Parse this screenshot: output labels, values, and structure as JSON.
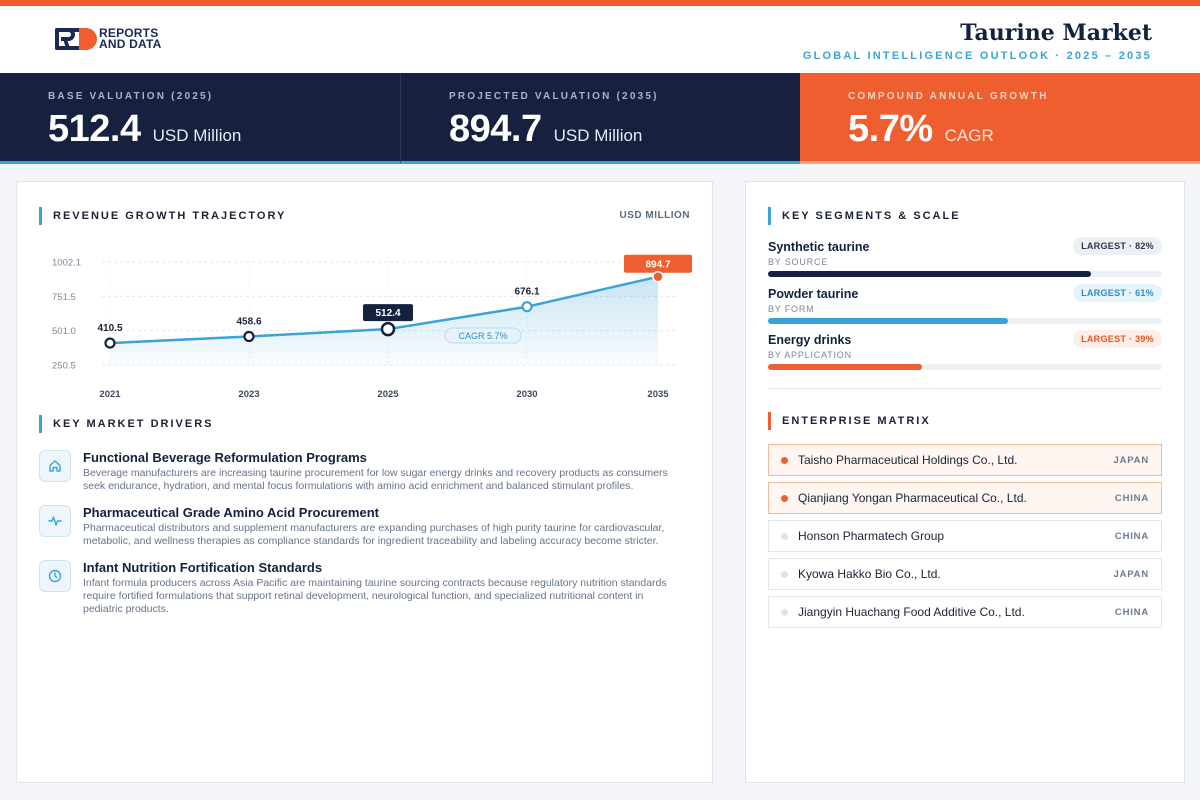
{
  "brand": {
    "line1": "REPORTS",
    "line2": "AND DATA"
  },
  "header": {
    "title": "Taurine Market",
    "subtitle": "GLOBAL INTELLIGENCE OUTLOOK  ·  2025 – 2035"
  },
  "kpis": [
    {
      "label": "BASE VALUATION (2025)",
      "value": "512.4",
      "unit": "USD Million"
    },
    {
      "label": "PROJECTED VALUATION (2035)",
      "value": "894.7",
      "unit": "USD Million"
    },
    {
      "label": "COMPOUND ANNUAL GROWTH",
      "value": "5.7%",
      "unit": "CAGR"
    }
  ],
  "revenue": {
    "title": "REVENUE GROWTH TRAJECTORY",
    "unit": "USD MILLION",
    "cagr_label": "CAGR 5.7%"
  },
  "chart_data": {
    "type": "area",
    "x": [
      "2021",
      "2023",
      "2025",
      "2030",
      "2035"
    ],
    "values": [
      410.5,
      458.6,
      512.4,
      676.1,
      894.7
    ],
    "labels": [
      "410.5",
      "458.6",
      "512.4",
      "676.1",
      "894.7"
    ],
    "yticks": [
      "1002.1",
      "751.5",
      "501.0",
      "250.5"
    ],
    "ylim": [
      250.5,
      1002.1
    ],
    "grid": true,
    "accent": "#3aa3d6",
    "highlight": "#ee5e2e"
  },
  "drivers": {
    "title": "KEY MARKET DRIVERS",
    "items": [
      {
        "icon": "home-icon",
        "title": "Functional Beverage Reformulation Programs",
        "desc": "Beverage manufacturers are increasing taurine procurement for low sugar energy drinks and recovery products as consumers seek endurance, hydration, and mental focus formulations with amino acid enrichment and balanced stimulant profiles."
      },
      {
        "icon": "pulse-icon",
        "title": "Pharmaceutical Grade Amino Acid Procurement",
        "desc": "Pharmaceutical distributors and supplement manufacturers are expanding purchases of high purity taurine for cardiovascular, metabolic, and wellness therapies as compliance standards for ingredient traceability and labeling accuracy become stricter."
      },
      {
        "icon": "clock-icon",
        "title": "Infant Nutrition Fortification Standards",
        "desc": "Infant formula producers across Asia Pacific are maintaining taurine sourcing contracts because regulatory nutrition standards require fortified formulations that support retinal development, neurological function, and specialized nutritional content in pediatric products."
      }
    ]
  },
  "segments": {
    "title": "KEY SEGMENTS & SCALE",
    "items": [
      {
        "name": "Synthetic taurine",
        "sub": "BY SOURCE",
        "badge": "LARGEST · 82%",
        "share": 0.82,
        "color": "#15213f",
        "badge_bg": "#eceff4",
        "badge_fg": "#2a3550"
      },
      {
        "name": "Powder taurine",
        "sub": "BY FORM",
        "badge": "LARGEST · 61%",
        "share": 0.61,
        "color": "#3aa3d6",
        "badge_bg": "#e6f3fa",
        "badge_fg": "#2b8fc2"
      },
      {
        "name": "Energy drinks",
        "sub": "BY APPLICATION",
        "badge": "LARGEST · 39%",
        "share": 0.39,
        "color": "#ee5e2e",
        "badge_bg": "#fdeee7",
        "badge_fg": "#e0562a"
      }
    ]
  },
  "enterprise": {
    "title": "ENTERPRISE MATRIX",
    "items": [
      {
        "name": "Taisho Pharmaceutical Holdings Co., Ltd.",
        "country": "JAPAN",
        "highlight": true
      },
      {
        "name": "Qianjiang Yongan Pharmaceutical Co., Ltd.",
        "country": "CHINA",
        "highlight": true
      },
      {
        "name": "Honson Pharmatech Group",
        "country": "CHINA",
        "highlight": false
      },
      {
        "name": "Kyowa Hakko Bio Co., Ltd.",
        "country": "JAPAN",
        "highlight": false
      },
      {
        "name": "Jiangyin Huachang Food Additive Co., Ltd.",
        "country": "CHINA",
        "highlight": false
      }
    ]
  }
}
